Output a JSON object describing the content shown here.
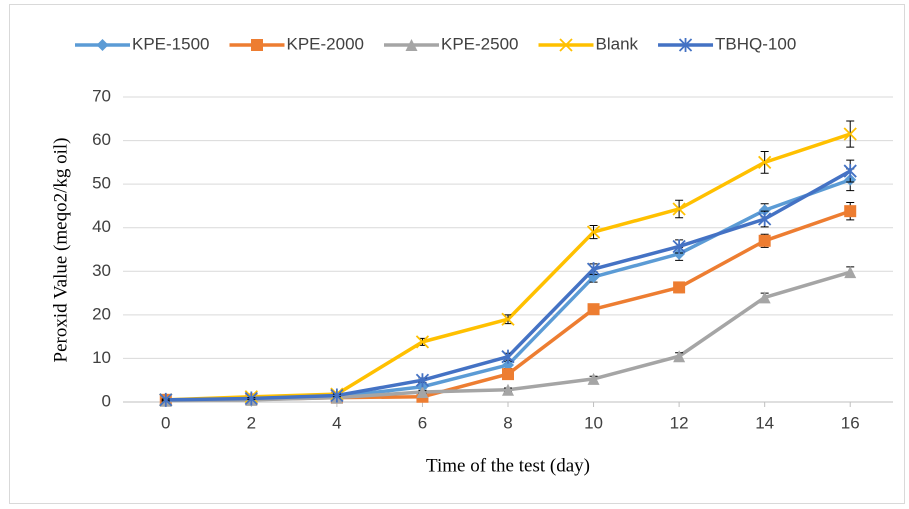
{
  "chart_data": {
    "type": "line",
    "x_label": "Time of the test (day)",
    "y_label": "Peroxid Value (meqo2/kg oil)",
    "x": [
      0,
      2,
      4,
      6,
      8,
      10,
      12,
      14,
      16
    ],
    "xlim": [
      -1,
      17
    ],
    "xticks": [
      0,
      2,
      4,
      6,
      8,
      10,
      12,
      14,
      16
    ],
    "ylim": [
      0,
      70
    ],
    "yticks": [
      0,
      10,
      20,
      30,
      40,
      50,
      60,
      70
    ],
    "grid": true,
    "legend": "top",
    "series": [
      {
        "name": "KPE-1500",
        "color": "#5b9bd5",
        "marker": "diamond",
        "values": [
          0.5,
          0.7,
          1.2,
          3.5,
          8.5,
          28.7,
          34,
          44,
          51
        ],
        "errors": [
          0.2,
          0.2,
          0.3,
          0.5,
          0.8,
          1.2,
          1.5,
          1.5,
          2.5
        ]
      },
      {
        "name": "KPE-2000",
        "color": "#ed7d31",
        "marker": "square",
        "values": [
          0.5,
          0.6,
          1,
          1.2,
          6.4,
          21.3,
          26.3,
          37,
          43.8
        ],
        "errors": [
          0.2,
          0.2,
          0.3,
          0.4,
          0.8,
          1,
          1.2,
          1.5,
          2
        ]
      },
      {
        "name": "KPE-2500",
        "color": "#a5a5a5",
        "marker": "triangle",
        "values": [
          0.3,
          0.5,
          1,
          2.3,
          2.8,
          5.3,
          10.5,
          24,
          29.8
        ],
        "errors": [
          0.2,
          0.2,
          0.3,
          0.3,
          0.4,
          0.6,
          0.8,
          1,
          1.2
        ]
      },
      {
        "name": "Blank",
        "color": "#ffc000",
        "marker": "x",
        "values": [
          0.5,
          1.2,
          1.8,
          13.8,
          19,
          39,
          44.3,
          55,
          61.5
        ],
        "errors": [
          0.2,
          0.3,
          0.3,
          0.8,
          1,
          1.5,
          2,
          2.5,
          3
        ]
      },
      {
        "name": "TBHQ-100",
        "color": "#4472c4",
        "marker": "star",
        "values": [
          0.5,
          0.8,
          1.5,
          5,
          10.4,
          30.5,
          35.7,
          42,
          53
        ],
        "errors": [
          0.2,
          0.2,
          0.3,
          0.5,
          0.8,
          1.2,
          1.5,
          1.8,
          2.5
        ]
      }
    ]
  }
}
